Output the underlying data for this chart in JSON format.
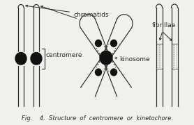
{
  "fig_width": 2.78,
  "fig_height": 1.8,
  "dpi": 100,
  "bg_color": "#f0f0ec",
  "line_color": "#2a2a2a",
  "dot_color": "#111111",
  "caption": "Fig.    4.  Structure  of  centromere  or  kinetochore.",
  "caption_fontsize": 6.0,
  "label_fontsize": 6.5,
  "label_chromatids": "chromatids",
  "label_centromere": "centromere",
  "label_kinosome": "kinosome",
  "label_fibrillae": "fibrillae"
}
